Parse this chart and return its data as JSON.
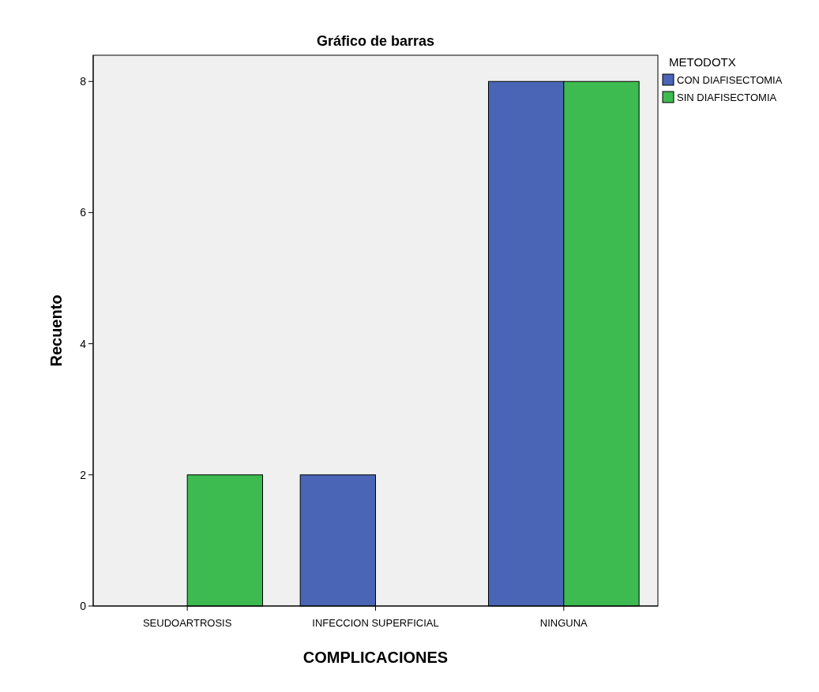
{
  "chart_data": {
    "type": "bar",
    "title": "Gráfico de barras",
    "xlabel": "COMPLICACIONES",
    "ylabel": "Recuento",
    "legend_title": "METODOTX",
    "categories": [
      "SEUDOARTROSIS",
      "INFECCION SUPERFICIAL",
      "NINGUNA"
    ],
    "series": [
      {
        "name": "CON DIAFISECTOMIA",
        "color": "#4a65b5",
        "values": [
          0,
          2,
          8
        ]
      },
      {
        "name": "SIN DIAFISECTOMIA",
        "color": "#3dbb50",
        "values": [
          2,
          0,
          8
        ]
      }
    ],
    "ylim": [
      0,
      8.4
    ],
    "yticks": [
      0,
      2,
      4,
      6,
      8
    ],
    "grid": false,
    "legend": "top right"
  }
}
